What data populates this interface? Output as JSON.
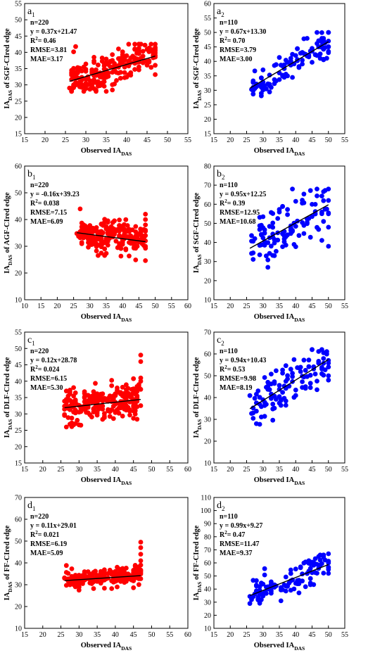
{
  "figure": {
    "colors": {
      "red_series": "#ff0000",
      "blue_series": "#0000ff",
      "fit_line": "#000000",
      "axis": "#000000"
    },
    "panels": [
      {
        "tag": "a",
        "tag_sub": "1",
        "color": "#ff0000",
        "ylabel": "IA",
        "ylabel_sub": "DAS",
        "ylabel_rest": " of SGF-CIred edge",
        "xlabel": "Observed IA",
        "xlabel_sub": "DAS",
        "xlim": [
          15,
          55
        ],
        "xticks": [
          15,
          20,
          25,
          30,
          35,
          40,
          45,
          50,
          55
        ],
        "ylim": [
          15,
          55
        ],
        "yticks": [
          15,
          20,
          25,
          30,
          35,
          40,
          45,
          50,
          55
        ],
        "stats": [
          "n=220",
          "y = 0.37x+21.47",
          "R2= 0.46",
          "RMSE=3.81",
          "MAE=3.17"
        ],
        "fit": {
          "slope": 0.37,
          "intercept": 21.47,
          "x_range": [
            26,
            47
          ]
        },
        "cloud": {
          "n": 220,
          "x_min": 26,
          "x_max": 47,
          "slope": 0.37,
          "intercept": 21.47,
          "spread": 3.8,
          "y_min": 28,
          "y_max": 42.5,
          "seed": 11,
          "end_column": [
            42.5,
            41.5,
            40.5,
            39.8,
            41
          ]
        }
      },
      {
        "tag": "a",
        "tag_sub": "2",
        "color": "#0000ff",
        "ylabel": "IA",
        "ylabel_sub": "DAS",
        "ylabel_rest": " of SGF-CIred edge",
        "xlabel": "Observed IA",
        "xlabel_sub": "DAS",
        "xlim": [
          15,
          55
        ],
        "xticks": [
          15,
          20,
          25,
          30,
          35,
          40,
          45,
          50,
          55
        ],
        "ylim": [
          15,
          60
        ],
        "yticks": [
          15,
          20,
          25,
          30,
          35,
          40,
          45,
          50,
          55,
          60
        ],
        "stats": [
          "n=110",
          "y = 0.67x+13.30",
          "R2= 0.70",
          "RMSE=3.79",
          "MAE=3.00"
        ],
        "fit": {
          "slope": 0.67,
          "intercept": 13.3,
          "x_range": [
            26,
            50
          ]
        },
        "cloud": {
          "n": 110,
          "x_min": 26,
          "x_max": 50,
          "slope": 0.67,
          "intercept": 13.3,
          "spread": 3.2,
          "y_min": 27,
          "y_max": 50,
          "seed": 23,
          "end_column": [
            50,
            47,
            45,
            43
          ]
        }
      },
      {
        "tag": "b",
        "tag_sub": "1",
        "color": "#ff0000",
        "ylabel": "IA",
        "ylabel_sub": "DAS",
        "ylabel_rest": " of AGF-CIred edge",
        "xlabel": "Observed IA",
        "xlabel_sub": "DAS",
        "xlim": [
          10,
          60
        ],
        "xticks": [
          10,
          15,
          20,
          25,
          30,
          35,
          40,
          45,
          50,
          55,
          60
        ],
        "ylim": [
          10,
          60
        ],
        "yticks": [
          10,
          20,
          30,
          40,
          50,
          60
        ],
        "stats": [
          "n=220",
          "y = -0.16x+39.23",
          "R2= 0.038",
          "RMSE=7.15",
          "MAE=6.09"
        ],
        "fit": {
          "slope": -0.16,
          "intercept": 39.23,
          "x_range": [
            26,
            47
          ]
        },
        "cloud": {
          "n": 220,
          "x_min": 26,
          "x_max": 47,
          "slope": -0.16,
          "intercept": 39.23,
          "spread": 4.0,
          "y_min": 24,
          "y_max": 48,
          "seed": 37,
          "end_column": [
            42,
            40,
            38,
            36,
            34,
            32,
            30
          ]
        }
      },
      {
        "tag": "b",
        "tag_sub": "2",
        "color": "#0000ff",
        "ylabel": "IA",
        "ylabel_sub": "DAS",
        "ylabel_rest": " of SGF-CIred edge",
        "xlabel": "Observed IA",
        "xlabel_sub": "DAS",
        "xlim": [
          15,
          55
        ],
        "xticks": [
          15,
          20,
          25,
          30,
          35,
          40,
          45,
          50,
          55
        ],
        "ylim": [
          10,
          80
        ],
        "yticks": [
          10,
          20,
          30,
          40,
          50,
          60,
          70,
          80
        ],
        "stats": [
          "n=110",
          "y = 0.95x+12.25",
          "R2= 0.39",
          "RMSE=12.95",
          "MAE=10.68"
        ],
        "fit": {
          "slope": 0.95,
          "intercept": 12.25,
          "x_range": [
            26,
            50
          ]
        },
        "cloud": {
          "n": 110,
          "x_min": 26,
          "x_max": 50,
          "slope": 0.95,
          "intercept": 12.25,
          "spread": 9.0,
          "y_min": 27,
          "y_max": 68,
          "seed": 51,
          "end_column": [
            68,
            62,
            55,
            48,
            38
          ]
        }
      },
      {
        "tag": "c",
        "tag_sub": "1",
        "color": "#ff0000",
        "ylabel": "IA",
        "ylabel_sub": "DAS",
        "ylabel_rest": " of DLF-CIred edge",
        "xlabel": "Observed IA",
        "xlabel_sub": "DAS",
        "xlim": [
          15,
          60
        ],
        "xticks": [
          15,
          20,
          25,
          30,
          35,
          40,
          45,
          50,
          55,
          60
        ],
        "ylim": [
          15,
          55
        ],
        "yticks": [
          15,
          20,
          25,
          30,
          35,
          40,
          45,
          50,
          55
        ],
        "stats": [
          "n=220",
          "y = 0.12x+28.78",
          "R2= 0.024",
          "RMSE=6.15",
          "MAE=5.30"
        ],
        "fit": {
          "slope": 0.12,
          "intercept": 28.78,
          "x_range": [
            26,
            47
          ]
        },
        "cloud": {
          "n": 220,
          "x_min": 26,
          "x_max": 47,
          "slope": 0.12,
          "intercept": 28.78,
          "spread": 3.4,
          "y_min": 26,
          "y_max": 43,
          "seed": 67,
          "end_column": [
            48,
            46,
            41,
            40
          ]
        }
      },
      {
        "tag": "c",
        "tag_sub": "2",
        "color": "#0000ff",
        "ylabel": "IA",
        "ylabel_sub": "DAS",
        "ylabel_rest": " of DLF-CIred edge",
        "xlabel": "Observed IA",
        "xlabel_sub": "DAS",
        "xlim": [
          15,
          55
        ],
        "xticks": [
          15,
          20,
          25,
          30,
          35,
          40,
          45,
          50,
          55
        ],
        "ylim": [
          10,
          70
        ],
        "yticks": [
          10,
          20,
          30,
          40,
          50,
          60,
          70
        ],
        "stats": [
          "n=110",
          "y = 0.94x+10.43",
          "R2= 0.53",
          "RMSE=9.98",
          "MAE=8.19"
        ],
        "fit": {
          "slope": 0.94,
          "intercept": 10.43,
          "x_range": [
            26,
            50
          ]
        },
        "cloud": {
          "n": 110,
          "x_min": 26,
          "x_max": 50,
          "slope": 0.94,
          "intercept": 10.43,
          "spread": 6.5,
          "y_min": 26,
          "y_max": 62,
          "seed": 79,
          "end_column": [
            57,
            54,
            50,
            48
          ]
        }
      },
      {
        "tag": "d",
        "tag_sub": "1",
        "color": "#ff0000",
        "ylabel": "IA",
        "ylabel_sub": "DAS",
        "ylabel_rest": " of FF-CIred edge",
        "xlabel": "Observed  IA",
        "xlabel_sub": "DAS",
        "xlim": [
          15,
          60
        ],
        "xticks": [
          15,
          20,
          25,
          30,
          35,
          40,
          45,
          50,
          55,
          60
        ],
        "ylim": [
          10,
          70
        ],
        "yticks": [
          10,
          20,
          30,
          40,
          50,
          60,
          70
        ],
        "stats": [
          "n=220",
          "y = 0.11x+29.01",
          "R2= 0.021",
          "RMSE=6.19",
          "MAE=5.09"
        ],
        "fit": {
          "slope": 0.11,
          "intercept": 29.01,
          "x_range": [
            26,
            47
          ]
        },
        "cloud": {
          "n": 220,
          "x_min": 26,
          "x_max": 47,
          "slope": 0.11,
          "intercept": 29.01,
          "spread": 3.0,
          "y_min": 25,
          "y_max": 42,
          "seed": 97,
          "end_column": [
            49.5,
            47,
            44,
            41,
            39
          ]
        }
      },
      {
        "tag": "d",
        "tag_sub": "2",
        "color": "#0000ff",
        "ylabel": "IA",
        "ylabel_sub": "DAS",
        "ylabel_rest": " of FF-CIred edge",
        "xlabel": "Observed IA",
        "xlabel_sub": "DAS",
        "xlim": [
          15,
          55
        ],
        "xticks": [
          15,
          20,
          25,
          30,
          35,
          40,
          45,
          50,
          55
        ],
        "ylim": [
          10,
          110
        ],
        "yticks": [
          10,
          20,
          30,
          40,
          50,
          60,
          70,
          80,
          90,
          100,
          110
        ],
        "stats": [
          "n=110",
          "y = 0.99x+9.27",
          "R2= 0.47",
          "RMSE=11.47",
          "MAE=9.37"
        ],
        "fit": {
          "slope": 0.99,
          "intercept": 9.27,
          "x_range": [
            26,
            50
          ]
        },
        "cloud": {
          "n": 110,
          "x_min": 26,
          "x_max": 50,
          "slope": 0.99,
          "intercept": 9.27,
          "spread": 7.5,
          "y_min": 24,
          "y_max": 66,
          "seed": 113,
          "end_column": [
            67,
            60,
            55,
            52
          ]
        }
      }
    ]
  },
  "chart_data": [
    {
      "type": "scatter",
      "panel": "a1",
      "xlabel": "Observed IA DAS",
      "ylabel": "IA DAS of SGF-CIred edge",
      "xlim": [
        15,
        55
      ],
      "ylim": [
        15,
        55
      ],
      "n": 220,
      "fit": {
        "slope": 0.37,
        "intercept": 21.47
      },
      "r2": 0.46,
      "rmse": 3.81,
      "mae": 3.17
    },
    {
      "type": "scatter",
      "panel": "a2",
      "xlabel": "Observed IA DAS",
      "ylabel": "IA DAS of SGF-CIred edge",
      "xlim": [
        15,
        55
      ],
      "ylim": [
        15,
        60
      ],
      "n": 110,
      "fit": {
        "slope": 0.67,
        "intercept": 13.3
      },
      "r2": 0.7,
      "rmse": 3.79,
      "mae": 3.0
    },
    {
      "type": "scatter",
      "panel": "b1",
      "xlabel": "Observed IA DAS",
      "ylabel": "IA DAS of AGF-CIred edge",
      "xlim": [
        10,
        60
      ],
      "ylim": [
        10,
        60
      ],
      "n": 220,
      "fit": {
        "slope": -0.16,
        "intercept": 39.23
      },
      "r2": 0.038,
      "rmse": 7.15,
      "mae": 6.09
    },
    {
      "type": "scatter",
      "panel": "b2",
      "xlabel": "Observed IA DAS",
      "ylabel": "IA DAS of SGF-CIred edge",
      "xlim": [
        15,
        55
      ],
      "ylim": [
        10,
        80
      ],
      "n": 110,
      "fit": {
        "slope": 0.95,
        "intercept": 12.25
      },
      "r2": 0.39,
      "rmse": 12.95,
      "mae": 10.68
    },
    {
      "type": "scatter",
      "panel": "c1",
      "xlabel": "Observed IA DAS",
      "ylabel": "IA DAS of DLF-CIred edge",
      "xlim": [
        15,
        60
      ],
      "ylim": [
        15,
        55
      ],
      "n": 220,
      "fit": {
        "slope": 0.12,
        "intercept": 28.78
      },
      "r2": 0.024,
      "rmse": 6.15,
      "mae": 5.3
    },
    {
      "type": "scatter",
      "panel": "c2",
      "xlabel": "Observed IA DAS",
      "ylabel": "IA DAS of DLF-CIred edge",
      "xlim": [
        15,
        55
      ],
      "ylim": [
        10,
        70
      ],
      "n": 110,
      "fit": {
        "slope": 0.94,
        "intercept": 10.43
      },
      "r2": 0.53,
      "rmse": 9.98,
      "mae": 8.19
    },
    {
      "type": "scatter",
      "panel": "d1",
      "xlabel": "Observed IA DAS",
      "ylabel": "IA DAS of FF-CIred edge",
      "xlim": [
        15,
        60
      ],
      "ylim": [
        10,
        70
      ],
      "n": 220,
      "fit": {
        "slope": 0.11,
        "intercept": 29.01
      },
      "r2": 0.021,
      "rmse": 6.19,
      "mae": 5.09
    },
    {
      "type": "scatter",
      "panel": "d2",
      "xlabel": "Observed IA DAS",
      "ylabel": "IA DAS of FF-CIred edge",
      "xlim": [
        15,
        55
      ],
      "ylim": [
        10,
        110
      ],
      "n": 110,
      "fit": {
        "slope": 0.99,
        "intercept": 9.27
      },
      "r2": 0.47,
      "rmse": 11.47,
      "mae": 9.37
    }
  ]
}
